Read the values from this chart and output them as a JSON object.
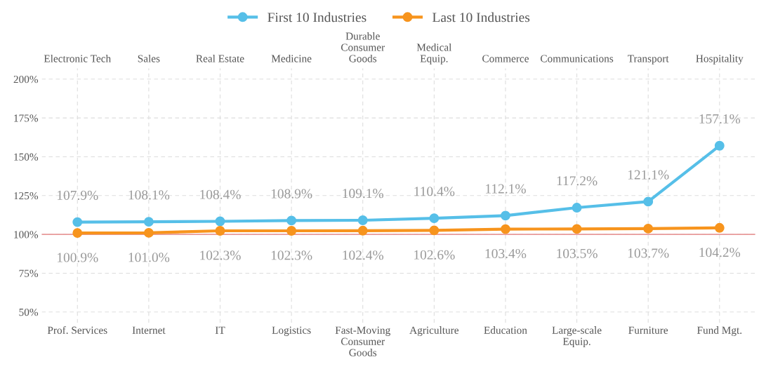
{
  "chart_data": {
    "type": "line",
    "categories": [
      "Prof. Services",
      "Internet",
      "IT",
      "Logistics",
      "Fast-Moving\nConsumer\nGoods",
      "Agriculture",
      "Education",
      "Large-scale\nEquip.",
      "Furniture",
      "Fund Mgt."
    ],
    "annotations": [
      "Electronic Tech",
      "Sales",
      "Real Estate",
      "Medicine",
      "Durable\nConsumer\nGoods",
      "Medical\nEquip.",
      "Commerce",
      "Communications",
      "Transport",
      "Hospitality"
    ],
    "series": [
      {
        "name": "First 10 Industries",
        "color": "#56bfe8",
        "values": [
          107.9,
          108.1,
          108.4,
          108.9,
          109.1,
          110.4,
          112.1,
          117.2,
          121.1,
          157.1
        ],
        "value_labels": [
          "107.9%",
          "108.1%",
          "108.4%",
          "108.9%",
          "109.1%",
          "110.4%",
          "112.1%",
          "117.2%",
          "121.1%",
          "157.1%"
        ]
      },
      {
        "name": "Last 10 Industries",
        "color": "#f7941d",
        "values": [
          100.9,
          101.0,
          102.3,
          102.3,
          102.4,
          102.6,
          103.4,
          103.5,
          103.7,
          104.2
        ],
        "value_labels": [
          "100.9%",
          "101.0%",
          "102.3%",
          "102.3%",
          "102.4%",
          "102.6%",
          "103.4%",
          "103.5%",
          "103.7%",
          "104.2%"
        ]
      }
    ],
    "ylim": [
      43,
      207
    ],
    "yticks": [
      {
        "value": 50,
        "label": "50%"
      },
      {
        "value": 75,
        "label": "75%"
      },
      {
        "value": 100,
        "label": "100%"
      },
      {
        "value": 125,
        "label": "125%"
      },
      {
        "value": 150,
        "label": "150%"
      },
      {
        "value": 175,
        "label": "175%"
      },
      {
        "value": 200,
        "label": "200%"
      }
    ],
    "ref_lines": [
      {
        "axis": "y",
        "value": 100,
        "color": "#e89a9a"
      }
    ],
    "grid": true,
    "legend": "top",
    "marker": "circle",
    "line_style": "solid"
  }
}
